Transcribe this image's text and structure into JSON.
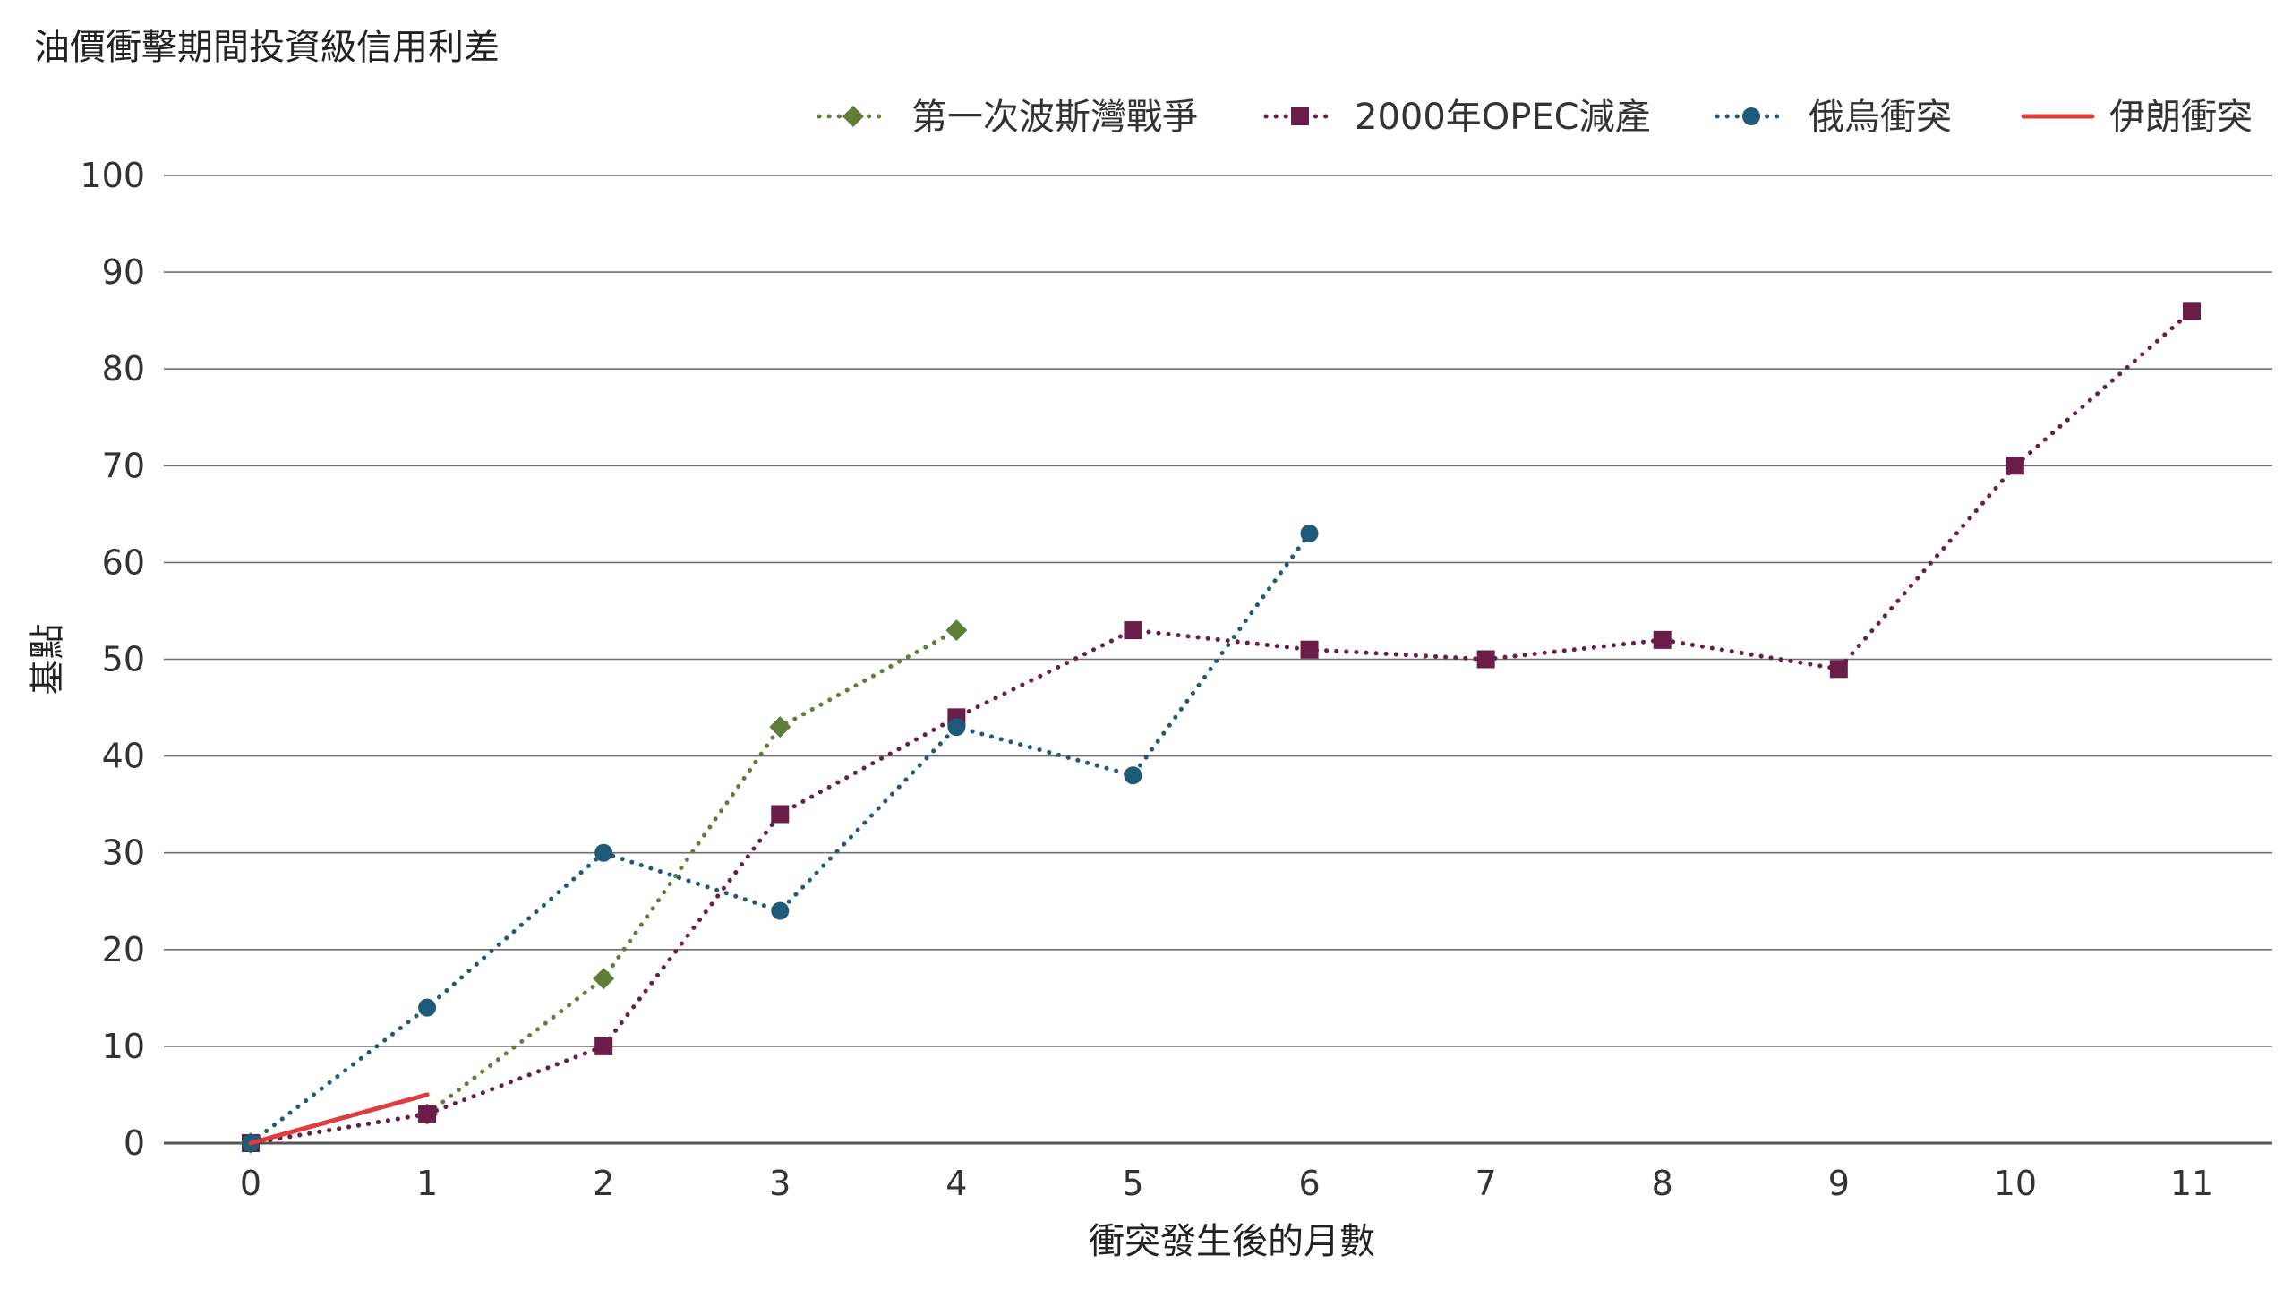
{
  "chart_data": {
    "type": "line",
    "title": "油價衝擊期間投資級信用利差",
    "xlabel": "衝突發生後的月數",
    "ylabel": "基點",
    "x": [
      0,
      1,
      2,
      3,
      4,
      5,
      6,
      7,
      8,
      9,
      10,
      11
    ],
    "x_tick_labels": [
      "0",
      "1",
      "2",
      "3",
      "4",
      "5",
      "6",
      "7",
      "8",
      "9",
      "10",
      "11"
    ],
    "ylim": [
      0,
      100
    ],
    "y_ticks": [
      0,
      10,
      20,
      30,
      40,
      50,
      60,
      70,
      80,
      90,
      100
    ],
    "y_tick_labels": [
      "0",
      "10",
      "20",
      "30",
      "40",
      "50",
      "60",
      "70",
      "80",
      "90",
      "100"
    ],
    "grid": true,
    "legend_position": "top-right",
    "series": [
      {
        "name": "第一次波斯灣戰爭",
        "color": "#5e7e3a",
        "marker": "diamond",
        "line_style": "dotted",
        "x": [
          0,
          1,
          2,
          3,
          4
        ],
        "values": [
          0,
          3,
          17,
          43,
          53
        ]
      },
      {
        "name": "2000年OPEC減產",
        "color": "#6a1d47",
        "marker": "square",
        "line_style": "dotted",
        "x": [
          0,
          1,
          2,
          3,
          4,
          5,
          6,
          7,
          8,
          9,
          10,
          11
        ],
        "values": [
          0,
          3,
          10,
          34,
          44,
          53,
          51,
          50,
          52,
          49,
          70,
          86
        ]
      },
      {
        "name": "俄烏衝突",
        "color": "#1f5a78",
        "marker": "circle",
        "line_style": "dotted",
        "x": [
          0,
          1,
          2,
          3,
          4,
          5,
          6
        ],
        "values": [
          0,
          14,
          30,
          24,
          43,
          38,
          63
        ]
      },
      {
        "name": "伊朗衝突",
        "color": "#e03b3f",
        "marker": "none",
        "line_style": "solid",
        "x": [
          0,
          1
        ],
        "values": [
          0,
          5
        ]
      }
    ]
  }
}
